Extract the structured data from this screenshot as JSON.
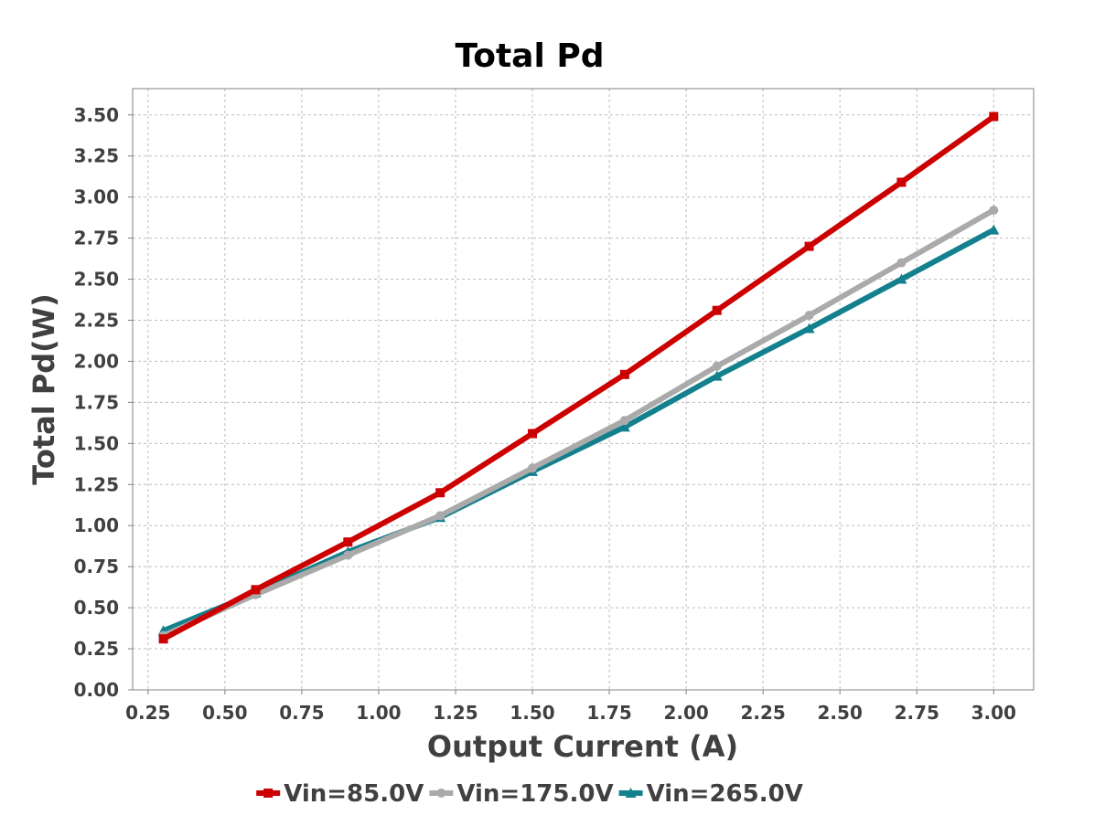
{
  "chart_data": {
    "type": "line",
    "title": "Total Pd",
    "xlabel": "Output Current (A)",
    "ylabel": "Total Pd(W)",
    "xlim": [
      0.2,
      3.13
    ],
    "ylim": [
      0.0,
      3.66
    ],
    "x_ticks": [
      "0.25",
      "0.50",
      "0.75",
      "1.00",
      "1.25",
      "1.50",
      "1.75",
      "2.00",
      "2.25",
      "2.50",
      "2.75",
      "3.00"
    ],
    "y_ticks": [
      "0.00",
      "0.25",
      "0.50",
      "0.75",
      "1.00",
      "1.25",
      "1.50",
      "1.75",
      "2.00",
      "2.25",
      "2.50",
      "2.75",
      "3.00",
      "3.25",
      "3.50"
    ],
    "grid": true,
    "legend_position": "bottom",
    "x": [
      0.3,
      0.6,
      0.9,
      1.2,
      1.5,
      1.8,
      2.1,
      2.4,
      2.7,
      3.0
    ],
    "series": [
      {
        "name": "Vin=85.0V",
        "color": "#cc0000",
        "marker": "square",
        "values": [
          0.31,
          0.61,
          0.9,
          1.2,
          1.56,
          1.92,
          2.31,
          2.7,
          3.09,
          3.49
        ]
      },
      {
        "name": "Vin=175.0V",
        "color": "#aaaaaa",
        "marker": "circle",
        "values": [
          0.33,
          0.58,
          0.82,
          1.06,
          1.35,
          1.64,
          1.97,
          2.28,
          2.6,
          2.92
        ]
      },
      {
        "name": "Vin=265.0V",
        "color": "#13808d",
        "marker": "triangle",
        "values": [
          0.36,
          0.59,
          0.84,
          1.05,
          1.33,
          1.6,
          1.91,
          2.2,
          2.5,
          2.8
        ]
      }
    ]
  }
}
